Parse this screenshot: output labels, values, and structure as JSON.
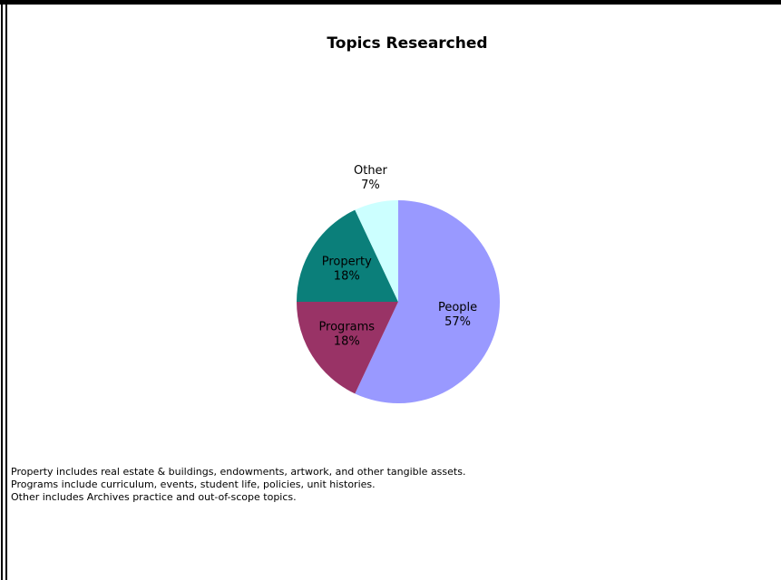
{
  "chart_data": {
    "type": "pie",
    "title": "Topics Researched",
    "categories": [
      "People",
      "Programs",
      "Property",
      "Other"
    ],
    "values": [
      57,
      18,
      18,
      7
    ],
    "value_labels": [
      "57%",
      "18%",
      "18%",
      "7%"
    ],
    "colors": [
      "#9999ff",
      "#993366",
      "#0b7f7a",
      "#ccffff"
    ],
    "notes": [
      "Property includes real estate & buildings, endowments, artwork, and other tangible assets.",
      "Programs include curriculum, events, student life, policies, unit histories.",
      "Other includes Archives practice and out-of-scope topics."
    ]
  }
}
